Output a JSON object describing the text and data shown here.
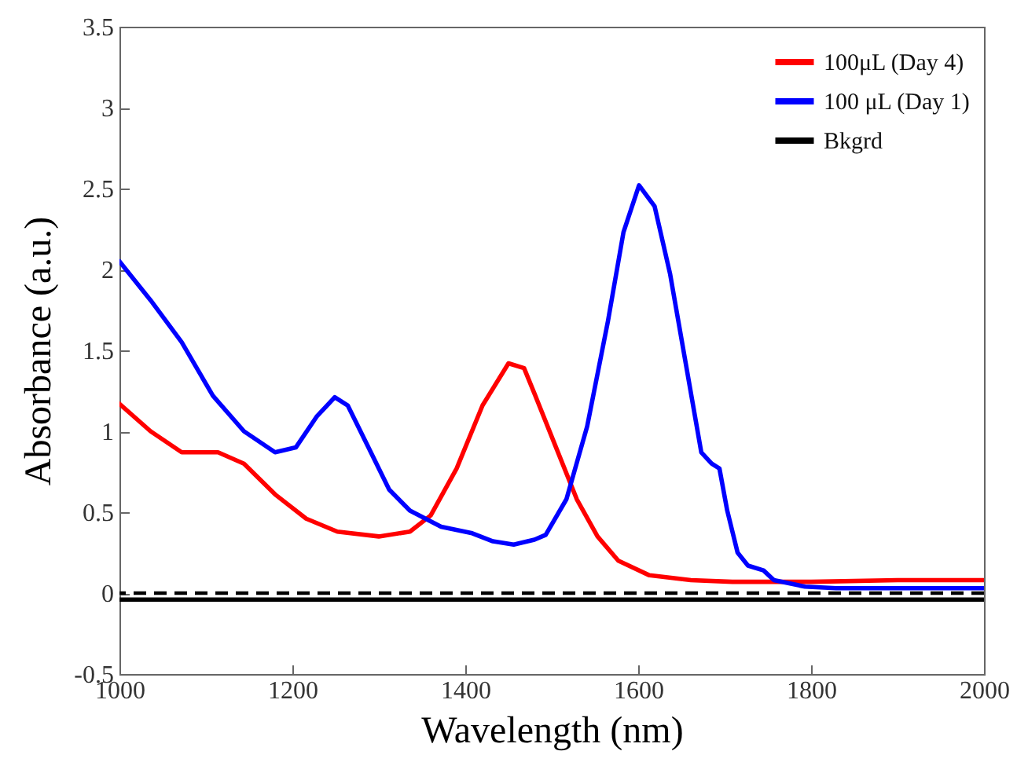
{
  "chart_data": {
    "type": "line",
    "xlabel": "Wavelength (nm)",
    "ylabel": "Absorbance (a.u.)",
    "xlim": [
      1000,
      2000
    ],
    "xticks": [
      1000,
      1200,
      1400,
      1600,
      1800,
      2000
    ],
    "ylim": [
      -0.5,
      3.5
    ],
    "yticks": [
      -0.5,
      0,
      0.5,
      1,
      1.5,
      2,
      2.5,
      3,
      3.5
    ],
    "grid": false,
    "legend": "top right",
    "line_style": "solid",
    "marker": "none",
    "ref_lines": [
      {
        "axis": "y",
        "value": 0,
        "color": "#000000",
        "line_style": "dashed"
      }
    ],
    "series": [
      {
        "name": "100μL (Day 4)",
        "color": "#ff0000",
        "x": [
          1000,
          1036,
          1072,
          1114,
          1144,
          1180,
          1216,
          1252,
          1300,
          1336,
          1360,
          1390,
          1420,
          1450,
          1468,
          1481,
          1505,
          1529,
          1553,
          1577,
          1613,
          1661,
          1709,
          1800,
          1900,
          2000
        ],
        "values": [
          1.17,
          1.0,
          0.87,
          0.87,
          0.8,
          0.61,
          0.46,
          0.38,
          0.35,
          0.38,
          0.48,
          0.77,
          1.16,
          1.42,
          1.39,
          1.22,
          0.9,
          0.58,
          0.35,
          0.2,
          0.11,
          0.08,
          0.07,
          0.07,
          0.08,
          0.08
        ]
      },
      {
        "name": "100 μL (Day 1)",
        "color": "#0000ff",
        "x": [
          1000,
          1036,
          1072,
          1108,
          1144,
          1180,
          1204,
          1228,
          1249,
          1264,
          1288,
          1312,
          1336,
          1372,
          1408,
          1432,
          1456,
          1480,
          1493,
          1517,
          1541,
          1565,
          1583,
          1601,
          1619,
          1637,
          1655,
          1673,
          1685,
          1694,
          1703,
          1715,
          1727,
          1745,
          1757,
          1793,
          1829,
          1900,
          2000
        ],
        "values": [
          2.05,
          1.81,
          1.55,
          1.22,
          1.0,
          0.87,
          0.9,
          1.09,
          1.21,
          1.16,
          0.9,
          0.64,
          0.51,
          0.41,
          0.37,
          0.32,
          0.3,
          0.33,
          0.36,
          0.58,
          1.03,
          1.68,
          2.23,
          2.52,
          2.39,
          1.97,
          1.42,
          0.87,
          0.8,
          0.77,
          0.51,
          0.25,
          0.17,
          0.14,
          0.08,
          0.04,
          0.03,
          0.03,
          0.03
        ]
      },
      {
        "name": "Bkgrd",
        "color": "#000000",
        "x": [
          1000,
          1500,
          2000
        ],
        "values": [
          -0.04,
          -0.04,
          -0.04
        ]
      }
    ]
  }
}
